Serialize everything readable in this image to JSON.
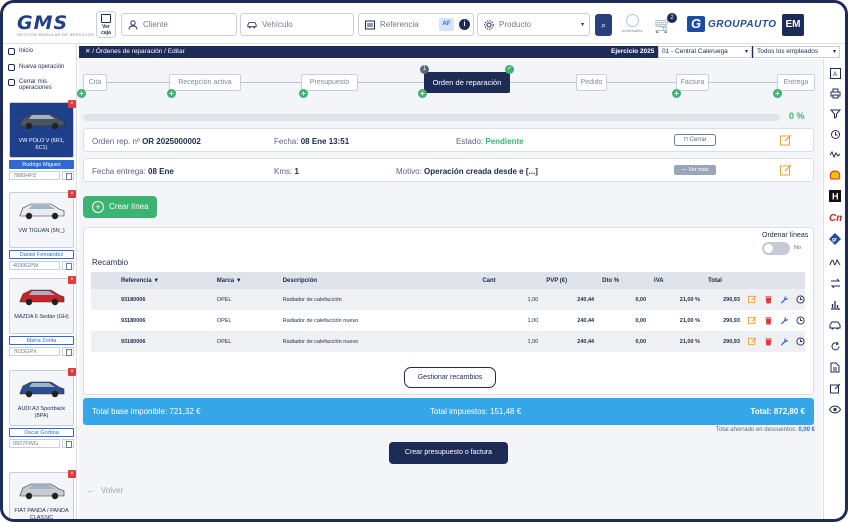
{
  "topbar": {
    "logo": "GMS",
    "logo_sub": "GESTIÓN MODULAR DE SERVICIOS",
    "caja_label": "Ver\ncaja",
    "cliente_placeholder": "Cliente",
    "vehiculo_placeholder": "Vehículo",
    "referencia_placeholder": "Referencia",
    "af_label": "AF",
    "producto_placeholder": "Producto",
    "universal_label": "Universales",
    "cart_count": "2",
    "brand": "GROUPAUTO",
    "user_initials": "EM"
  },
  "breadcrumb": {
    "text": "/ Órdenes de reparación / Editar",
    "ejercicio": "Ejercicio 2025",
    "centro": "01 - Central Caleruega",
    "empleados": "Todos los empleados"
  },
  "sidebar": {
    "menu": [
      "Inicio",
      "Nueva operación",
      "Cerrar mis operaciones"
    ],
    "vehicles": [
      {
        "name": "VW POLO V (6R1, 6C1)",
        "driver": "Rodrigo Miguez",
        "plate": "7880HPZ",
        "active": true,
        "color": "#4a5360"
      },
      {
        "name": "VW TIGUAN (5N_)",
        "driver": "Daniel Fernández",
        "plate": "4039GPW",
        "active": false,
        "color": "#e8ebef"
      },
      {
        "name": "MAZDA 6 Sedán (GH)",
        "driver": "María Zorita",
        "plate": "7633GPX",
        "active": false,
        "color": "#c8242a"
      },
      {
        "name": "AUDI A3 Sportback (8PA)",
        "driver": "Oscar Gorboa",
        "plate": "0927FWG",
        "active": false,
        "color": "#2d4e8e"
      },
      {
        "name": "FIAT PANDA / PANDA CLASSIC",
        "driver": "",
        "plate": "",
        "active": false,
        "color": "#c7ccd3"
      }
    ]
  },
  "steps": [
    {
      "label": "Cita"
    },
    {
      "label": "Recepción activa"
    },
    {
      "label": "Presupuesto"
    },
    {
      "label": "Orden de reparación",
      "num": "1"
    },
    {
      "label": "Pedido"
    },
    {
      "label": "Factura"
    },
    {
      "label": "Entrega"
    }
  ],
  "progress": {
    "value": 0,
    "label": "0 %"
  },
  "order": {
    "orden_label": "Orden rep. nº",
    "orden_value": "OR 2025000002",
    "fecha_label": "Fecha:",
    "fecha_value": "08 Ene 13:51",
    "estado_label": "Estado:",
    "estado_value": "Pendiente",
    "cerrar_label": "Cerrar",
    "entrega_label": "Fecha entrega:",
    "entrega_value": "08 Ene",
    "kms_label": "Kms:",
    "kms_value": "1",
    "motivo_label": "Motivo:",
    "motivo_value": "Operación creada desde e [...]",
    "vermas_label": "— Ver más"
  },
  "crear_linea": "Crear línea",
  "panel": {
    "ordenar_label": "Ordenar líneas",
    "toggle_label": "No",
    "section_title": "Recambio",
    "columns": [
      "Referencia ▼",
      "Marca ▼",
      "Descripción",
      "Cant",
      "PVP (€)",
      "Dto %",
      "IVA",
      "Total"
    ],
    "rows": [
      {
        "ref": "93180006",
        "marca": "OPEL",
        "desc": "Radiador de calefacción",
        "cant": "1,00",
        "pvp": "240,44",
        "dto": "0,00",
        "iva": "21,00 %",
        "total": "290,93"
      },
      {
        "ref": "93180006",
        "marca": "OPEL",
        "desc": "Radiador de calefacción nuevo",
        "cant": "1,00",
        "pvp": "240,44",
        "dto": "0,00",
        "iva": "21,00 %",
        "total": "290,93"
      },
      {
        "ref": "93180006",
        "marca": "OPEL",
        "desc": "Radiador de calefacción nuevo",
        "cant": "1,00",
        "pvp": "240,44",
        "dto": "0,00",
        "iva": "21,00 %",
        "total": "290,93"
      }
    ],
    "gestionar_label": "Gestionar recambios"
  },
  "totals": {
    "base": "Total base imponible: 721,32 €",
    "impuestos": "Total impuestos: 151,48 €",
    "total": "Total: 872,80 €",
    "ahorro_label": "Total ahorrado en descuentos:",
    "ahorro_value": "0,00 €"
  },
  "crear_presupuesto": "Crear presupuesto o factura",
  "volver": "Volver",
  "colors": {
    "navy": "#1d2b57",
    "green": "#3cb371",
    "blue": "#35a6e8",
    "orange": "#f0a030",
    "red": "#e23a3a"
  }
}
